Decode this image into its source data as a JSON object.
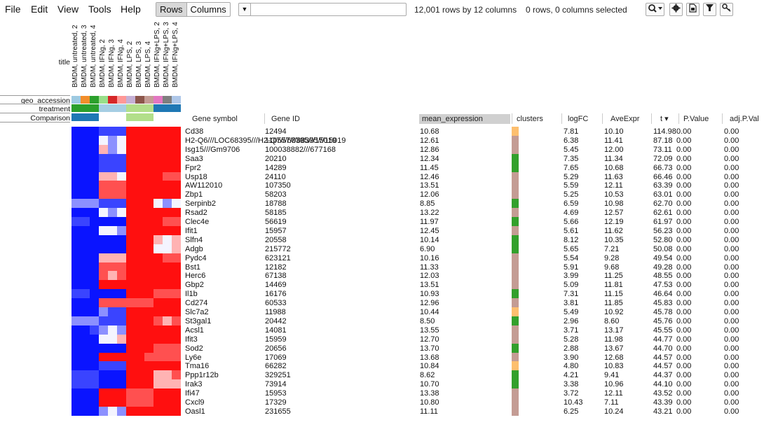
{
  "menu": [
    "File",
    "Edit",
    "View",
    "Tools",
    "Help"
  ],
  "toolbar": {
    "rows_label": "Rows",
    "columns_label": "Columns",
    "search_placeholder": "",
    "summary": "12,001 rows by 12 columns",
    "selection": "0 rows, 0 columns selected",
    "zoom_icon": "zoom-icon",
    "settings_icon": "gear-icon",
    "save_icon": "save-icon",
    "filter_icon": "filter-icon",
    "key_icon": "key-icon"
  },
  "annotations": {
    "title_label": "title",
    "geo_label": "geo_accession",
    "treatment_label": "treatment",
    "comparison_label": "Comparison"
  },
  "columns": [
    "BMDM, untreated, 2",
    "BMDM, untreated, 3",
    "BMDM, untreated, 4",
    "BMDM, IFNg, 2",
    "BMDM, IFNg, 3",
    "BMDM, IFNg, 4",
    "BMDM, LPS, 2",
    "BMDM, LPS, 3",
    "BMDM, LPS, 4",
    "BMDM, IFNg+LPS, 2",
    "BMDM, IFNg+LPS, 3",
    "BMDM, IFNg+LPS, 4"
  ],
  "geo_colors": [
    "#9ecae1",
    "#f28e2b",
    "#2ca02c",
    "#98df8a",
    "#d62728",
    "#ff9896",
    "#c5b0d5",
    "#8c564b",
    "#c49c94",
    "#e377c2",
    "#7f7f7f",
    "#aec7e8"
  ],
  "treatment_colors": [
    "#2ca02c",
    "#2ca02c",
    "#2ca02c",
    "#a6cee3",
    "#a6cee3",
    "#a6cee3",
    "#b2df8a",
    "#b2df8a",
    "#b2df8a",
    "#1f78b4",
    "#1f78b4",
    "#1f78b4"
  ],
  "comparison_colors": [
    "#1f78b4",
    "#1f78b4",
    "#1f78b4",
    "#ffffff",
    "#ffffff",
    "#ffffff",
    "#b2df8a",
    "#b2df8a",
    "#b2df8a",
    "#ffffff",
    "#ffffff",
    "#ffffff"
  ],
  "headers": {
    "gene_symbol": "Gene symbol",
    "gene_id": "Gene ID",
    "mean_expression": "mean_expression",
    "clusters": "clusters",
    "logfc": "logFC",
    "aveexpr": "AveExpr",
    "t": "t ▾",
    "pvalue": "P.Value",
    "adjp": "adj.P.Val"
  },
  "cluster_colors": {
    "a": "#fdbf6f",
    "b": "#c49c94",
    "c": "#33a02c"
  },
  "rows": [
    {
      "sym": "Cd38",
      "id": "12494",
      "mean": "10.68",
      "cl": "a",
      "logfc": "7.81",
      "ave": "10.10",
      "t": "114.98",
      "p": "0.00",
      "adj": "0.00",
      "hm": [
        -3,
        -3,
        -3,
        -2,
        -2,
        -2,
        3,
        3,
        3,
        3,
        3,
        3
      ]
    },
    {
      "sym": "H2-Q6///LOC68395///H2-Q7///68395///15019",
      "id": "110557///68395///15019",
      "mean": "12.61",
      "cl": "b",
      "logfc": "6.38",
      "ave": "11.41",
      "t": "87.18",
      "p": "0.00",
      "adj": "0.00",
      "hm": [
        -3,
        -3,
        -3,
        0,
        -1,
        0,
        3,
        3,
        3,
        3,
        3,
        3
      ]
    },
    {
      "sym": "Isg15///Gm9706",
      "id": "100038882///677168",
      "mean": "12.86",
      "cl": "b",
      "logfc": "5.45",
      "ave": "12.00",
      "t": "73.11",
      "p": "0.00",
      "adj": "0.00",
      "hm": [
        -3,
        -3,
        -3,
        1,
        -1,
        0,
        3,
        3,
        3,
        3,
        3,
        3
      ]
    },
    {
      "sym": "Saa3",
      "id": "20210",
      "mean": "12.34",
      "cl": "c",
      "logfc": "7.35",
      "ave": "11.34",
      "t": "72.09",
      "p": "0.00",
      "adj": "0.00",
      "hm": [
        -3,
        -3,
        -3,
        -2,
        -2,
        -2,
        3,
        3,
        3,
        3,
        3,
        3
      ]
    },
    {
      "sym": "Fpr2",
      "id": "14289",
      "mean": "11.45",
      "cl": "c",
      "logfc": "7.65",
      "ave": "10.68",
      "t": "66.73",
      "p": "0.00",
      "adj": "0.00",
      "hm": [
        -3,
        -3,
        -3,
        -2,
        -2,
        -2,
        3,
        3,
        3,
        3,
        3,
        3
      ]
    },
    {
      "sym": "Usp18",
      "id": "24110",
      "mean": "12.46",
      "cl": "b",
      "logfc": "5.29",
      "ave": "11.63",
      "t": "66.46",
      "p": "0.00",
      "adj": "0.00",
      "hm": [
        -3,
        -3,
        -3,
        1,
        1,
        0,
        3,
        3,
        3,
        3,
        2,
        2
      ]
    },
    {
      "sym": "AW112010",
      "id": "107350",
      "mean": "13.51",
      "cl": "b",
      "logfc": "5.59",
      "ave": "12.11",
      "t": "63.39",
      "p": "0.00",
      "adj": "0.00",
      "hm": [
        -3,
        -3,
        -3,
        2,
        2,
        2,
        3,
        3,
        3,
        3,
        3,
        3
      ]
    },
    {
      "sym": "Zbp1",
      "id": "58203",
      "mean": "12.06",
      "cl": "b",
      "logfc": "5.25",
      "ave": "10.53",
      "t": "63.01",
      "p": "0.00",
      "adj": "0.00",
      "hm": [
        -3,
        -3,
        -3,
        2,
        2,
        2,
        3,
        3,
        3,
        3,
        3,
        3
      ]
    },
    {
      "sym": "Serpinb2",
      "id": "18788",
      "mean": "8.85",
      "cl": "c",
      "logfc": "6.59",
      "ave": "10.98",
      "t": "62.70",
      "p": "0.00",
      "adj": "0.00",
      "hm": [
        -1,
        -1,
        -1,
        -2,
        -2,
        -2,
        3,
        3,
        3,
        0,
        -1,
        0
      ]
    },
    {
      "sym": "Rsad2",
      "id": "58185",
      "mean": "13.22",
      "cl": "b",
      "logfc": "4.69",
      "ave": "12.57",
      "t": "62.61",
      "p": "0.00",
      "adj": "0.00",
      "hm": [
        -3,
        -3,
        -3,
        0,
        -1,
        0,
        3,
        3,
        3,
        3,
        3,
        3
      ]
    },
    {
      "sym": "Clec4e",
      "id": "56619",
      "mean": "11.97",
      "cl": "c",
      "logfc": "5.66",
      "ave": "12.19",
      "t": "61.97",
      "p": "0.00",
      "adj": "0.00",
      "hm": [
        -2,
        -2,
        -3,
        -3,
        -3,
        -3,
        3,
        3,
        3,
        3,
        2,
        2
      ]
    },
    {
      "sym": "Ifit1",
      "id": "15957",
      "mean": "12.45",
      "cl": "b",
      "logfc": "5.61",
      "ave": "11.62",
      "t": "56.23",
      "p": "0.00",
      "adj": "0.00",
      "hm": [
        -3,
        -3,
        -3,
        0,
        0,
        -1,
        3,
        3,
        3,
        3,
        3,
        3
      ]
    },
    {
      "sym": "Slfn4",
      "id": "20558",
      "mean": "10.14",
      "cl": "c",
      "logfc": "8.12",
      "ave": "10.35",
      "t": "52.80",
      "p": "0.00",
      "adj": "0.00",
      "hm": [
        -3,
        -3,
        -3,
        -3,
        -3,
        -3,
        3,
        3,
        3,
        1,
        0,
        1
      ]
    },
    {
      "sym": "Adgb",
      "id": "215772",
      "mean": "6.90",
      "cl": "c",
      "logfc": "5.65",
      "ave": "7.21",
      "t": "50.08",
      "p": "0.00",
      "adj": "0.00",
      "hm": [
        -3,
        -3,
        -3,
        -3,
        -3,
        -3,
        3,
        3,
        3,
        0,
        0,
        1
      ]
    },
    {
      "sym": "Pydc4",
      "id": "623121",
      "mean": "10.16",
      "cl": "b",
      "logfc": "5.54",
      "ave": "9.28",
      "t": "49.54",
      "p": "0.00",
      "adj": "0.00",
      "hm": [
        -3,
        -3,
        -3,
        1,
        1,
        1,
        3,
        3,
        3,
        3,
        2,
        2
      ]
    },
    {
      "sym": "Bst1",
      "id": "12182",
      "mean": "11.33",
      "cl": "b",
      "logfc": "5.91",
      "ave": "9.68",
      "t": "49.28",
      "p": "0.00",
      "adj": "0.00",
      "hm": [
        -3,
        -3,
        -3,
        2,
        2,
        2,
        3,
        3,
        3,
        3,
        3,
        3
      ]
    },
    {
      "sym": "Herc6",
      "id": "67138",
      "mean": "12.03",
      "cl": "b",
      "logfc": "3.99",
      "ave": "11.25",
      "t": "48.55",
      "p": "0.00",
      "adj": "0.00",
      "hm": [
        -3,
        -3,
        -3,
        2,
        1,
        2,
        3,
        3,
        3,
        3,
        3,
        3
      ]
    },
    {
      "sym": "Gbp2",
      "id": "14469",
      "mean": "13.51",
      "cl": "b",
      "logfc": "5.09",
      "ave": "11.81",
      "t": "47.53",
      "p": "0.00",
      "adj": "0.00",
      "hm": [
        -3,
        -3,
        -3,
        3,
        3,
        3,
        3,
        3,
        3,
        3,
        3,
        3
      ]
    },
    {
      "sym": "Il1b",
      "id": "16176",
      "mean": "10.93",
      "cl": "c",
      "logfc": "7.31",
      "ave": "11.15",
      "t": "46.64",
      "p": "0.00",
      "adj": "0.00",
      "hm": [
        -2,
        -2,
        -3,
        -3,
        -3,
        -3,
        3,
        3,
        3,
        2,
        2,
        2
      ]
    },
    {
      "sym": "Cd274",
      "id": "60533",
      "mean": "12.96",
      "cl": "b",
      "logfc": "3.81",
      "ave": "11.85",
      "t": "45.83",
      "p": "0.00",
      "adj": "0.00",
      "hm": [
        -3,
        -3,
        -3,
        2,
        2,
        2,
        2,
        2,
        2,
        3,
        3,
        3
      ]
    },
    {
      "sym": "Slc7a2",
      "id": "11988",
      "mean": "10.44",
      "cl": "a",
      "logfc": "5.49",
      "ave": "10.92",
      "t": "45.78",
      "p": "0.00",
      "adj": "0.00",
      "hm": [
        -3,
        -3,
        -3,
        -1,
        -2,
        -2,
        3,
        3,
        3,
        3,
        3,
        3
      ]
    },
    {
      "sym": "St3gal1",
      "id": "20442",
      "mean": "8.50",
      "cl": "c",
      "logfc": "2.96",
      "ave": "8.60",
      "t": "45.76",
      "p": "0.00",
      "adj": "0.00",
      "hm": [
        -1,
        -1,
        -1,
        -2,
        -2,
        -2,
        3,
        3,
        3,
        2,
        1,
        2
      ]
    },
    {
      "sym": "Acsl1",
      "id": "14081",
      "mean": "13.55",
      "cl": "b",
      "logfc": "3.71",
      "ave": "13.17",
      "t": "45.55",
      "p": "0.00",
      "adj": "0.00",
      "hm": [
        -3,
        -3,
        -2,
        -1,
        0,
        -1,
        3,
        3,
        3,
        3,
        3,
        3
      ]
    },
    {
      "sym": "Ifit3",
      "id": "15959",
      "mean": "12.70",
      "cl": "b",
      "logfc": "5.28",
      "ave": "11.98",
      "t": "44.77",
      "p": "0.00",
      "adj": "0.00",
      "hm": [
        -3,
        -3,
        -3,
        0,
        0,
        1,
        3,
        3,
        3,
        3,
        3,
        3
      ]
    },
    {
      "sym": "Sod2",
      "id": "20656",
      "mean": "13.70",
      "cl": "c",
      "logfc": "2.88",
      "ave": "13.67",
      "t": "44.70",
      "p": "0.00",
      "adj": "0.00",
      "hm": [
        -3,
        -3,
        -3,
        -3,
        -3,
        -3,
        3,
        3,
        3,
        2,
        2,
        2
      ]
    },
    {
      "sym": "Ly6e",
      "id": "17069",
      "mean": "13.68",
      "cl": "b",
      "logfc": "3.90",
      "ave": "12.68",
      "t": "44.57",
      "p": "0.00",
      "adj": "0.00",
      "hm": [
        -3,
        -3,
        -3,
        3,
        3,
        3,
        3,
        3,
        2,
        2,
        2,
        2
      ]
    },
    {
      "sym": "Tma16",
      "id": "66282",
      "mean": "10.84",
      "cl": "a",
      "logfc": "4.80",
      "ave": "10.83",
      "t": "44.57",
      "p": "0.00",
      "adj": "0.00",
      "hm": [
        -3,
        -3,
        -3,
        -2,
        -2,
        -2,
        3,
        3,
        3,
        3,
        3,
        3
      ]
    },
    {
      "sym": "Ppp1r12b",
      "id": "329251",
      "mean": "8.62",
      "cl": "c",
      "logfc": "4.21",
      "ave": "9.41",
      "t": "44.37",
      "p": "0.00",
      "adj": "0.00",
      "hm": [
        -2,
        -2,
        -2,
        -3,
        -3,
        -3,
        3,
        3,
        3,
        1,
        1,
        2
      ]
    },
    {
      "sym": "Irak3",
      "id": "73914",
      "mean": "10.70",
      "cl": "c",
      "logfc": "3.38",
      "ave": "10.96",
      "t": "44.10",
      "p": "0.00",
      "adj": "0.00",
      "hm": [
        -2,
        -2,
        -2,
        -3,
        -3,
        -3,
        3,
        3,
        3,
        1,
        1,
        1
      ]
    },
    {
      "sym": "Ifi47",
      "id": "15953",
      "mean": "13.38",
      "cl": "b",
      "logfc": "3.72",
      "ave": "12.11",
      "t": "43.52",
      "p": "0.00",
      "adj": "0.00",
      "hm": [
        -3,
        -3,
        -3,
        3,
        3,
        3,
        2,
        2,
        2,
        3,
        3,
        3
      ]
    },
    {
      "sym": "Cxcl9",
      "id": "17329",
      "mean": "10.80",
      "cl": "b",
      "logfc": "10.43",
      "ave": "7.11",
      "t": "43.39",
      "p": "0.00",
      "adj": "0.00",
      "hm": [
        -3,
        -3,
        -3,
        3,
        3,
        3,
        2,
        2,
        2,
        3,
        3,
        3
      ]
    },
    {
      "sym": "Oasl1",
      "id": "231655",
      "mean": "11.11",
      "cl": "b",
      "logfc": "6.25",
      "ave": "10.24",
      "t": "43.21",
      "p": "0.00",
      "adj": "0.00",
      "hm": [
        -3,
        -3,
        -3,
        -1,
        0,
        -1,
        3,
        3,
        3,
        3,
        3,
        3
      ]
    }
  ]
}
